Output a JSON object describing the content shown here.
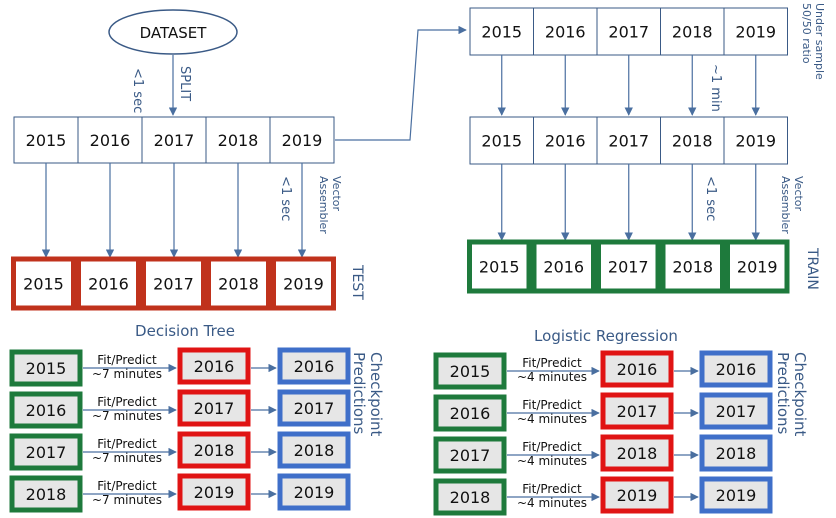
{
  "dataset_label": "DATASET",
  "split_label": "SPLIT",
  "split_time": "<1 sec",
  "vector_assembler_label": "Vector Assembler",
  "vector_time": "<1 sec",
  "undersample_label": "Under sample 50/50 ratio",
  "undersample_time": "~1 min",
  "train_vector_label": "Vector Assembler",
  "train_vector_time": "<1 sec",
  "test_label": "TEST",
  "train_label": "TRAIN",
  "years": [
    "2015",
    "2016",
    "2017",
    "2018",
    "2019"
  ],
  "decision_tree": {
    "title": "Decision Tree",
    "checkpoint_label": "Checkpoint Predictions",
    "rows": [
      {
        "train": "2015",
        "fit": "Fit/Predict",
        "time": "~7 minutes",
        "test": "2016",
        "pred": "2016"
      },
      {
        "train": "2016",
        "fit": "Fit/Predict",
        "time": "~7 minutes",
        "test": "2017",
        "pred": "2017"
      },
      {
        "train": "2017",
        "fit": "Fit/Predict",
        "time": "~7 minutes",
        "test": "2018",
        "pred": "2018"
      },
      {
        "train": "2018",
        "fit": "Fit/Predict",
        "time": "~7 minutes",
        "test": "2019",
        "pred": "2019"
      }
    ]
  },
  "logistic_regression": {
    "title": "Logistic Regression",
    "checkpoint_label": "Checkpoint Predictions",
    "rows": [
      {
        "train": "2015",
        "fit": "Fit/Predict",
        "time": "~4 minutes",
        "test": "2016",
        "pred": "2016"
      },
      {
        "train": "2016",
        "fit": "Fit/Predict",
        "time": "~4 minutes",
        "test": "2017",
        "pred": "2017"
      },
      {
        "train": "2017",
        "fit": "Fit/Predict",
        "time": "~4 minutes",
        "test": "2018",
        "pred": "2018"
      },
      {
        "train": "2018",
        "fit": "Fit/Predict",
        "time": "~4 minutes",
        "test": "2019",
        "pred": "2019"
      }
    ]
  },
  "colors": {
    "train_green": "#1e7a3c",
    "test_red": "#c0321c",
    "pred_red": "#e01414",
    "checkpoint_blue": "#3f6fc9",
    "label_blue": "#3a5a86",
    "box_fill": "#e6e6e6",
    "arrow": "#4a6fa0"
  }
}
